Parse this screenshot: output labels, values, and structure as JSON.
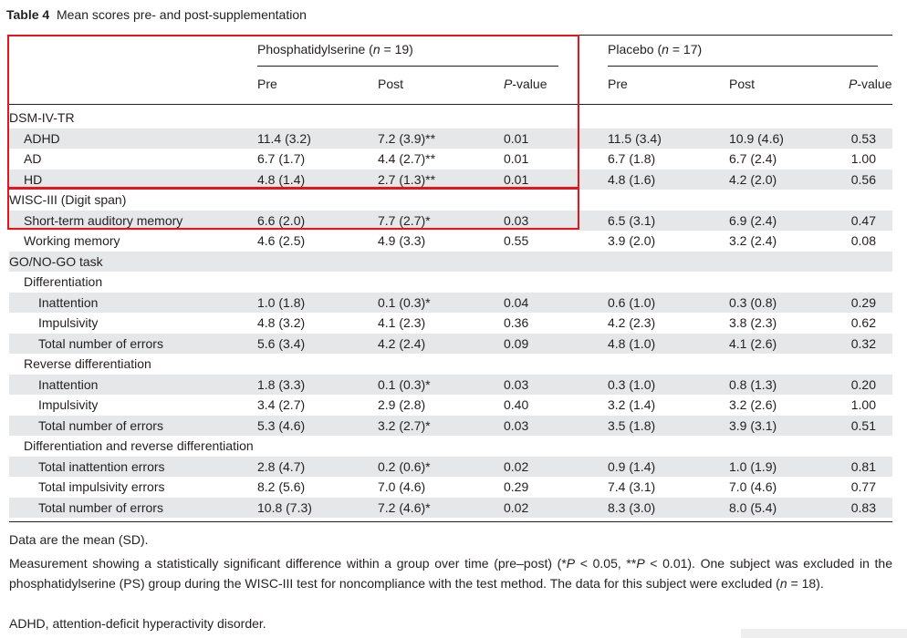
{
  "table": {
    "caption_label": "Table 4",
    "caption_text": "Mean scores pre- and post-supplementation",
    "group1_name": "Phosphatidylserine",
    "group1_n_var": "n",
    "group1_n_rest": " = 19)",
    "group2_name": "Placebo",
    "group2_n_var": "n",
    "group2_n_rest": " = 17)",
    "col_pre": "Pre",
    "col_post": "Post",
    "col_p_italic": "P",
    "col_p_rest": "-value",
    "rows": [
      {
        "label": "DSM-IV-TR",
        "level": 0,
        "section": true
      },
      {
        "label": "ADHD",
        "level": 1,
        "values": [
          "11.4 (3.2)",
          "7.2 (3.9)**",
          "0.01",
          "11.5 (3.4)",
          "10.9 (4.6)",
          "0.53"
        ]
      },
      {
        "label": "AD",
        "level": 1,
        "values": [
          "6.7 (1.7)",
          "4.4 (2.7)**",
          "0.01",
          "6.7 (1.8)",
          "6.7 (2.4)",
          "1.00"
        ]
      },
      {
        "label": "HD",
        "level": 1,
        "values": [
          "4.8 (1.4)",
          "2.7 (1.3)**",
          "0.01",
          "4.8 (1.6)",
          "4.2 (2.0)",
          "0.56"
        ]
      },
      {
        "label": "WISC-III (Digit span)",
        "level": 0,
        "section": true
      },
      {
        "label": "Short-term auditory memory",
        "level": 1,
        "values": [
          "6.6 (2.0)",
          "7.7 (2.7)*",
          "0.03",
          "6.5 (3.1)",
          "6.9 (2.4)",
          "0.47"
        ]
      },
      {
        "label": "Working memory",
        "level": 1,
        "values": [
          "4.6 (2.5)",
          "4.9 (3.3)",
          "0.55",
          "3.9 (2.0)",
          "3.2 (2.4)",
          "0.08"
        ]
      },
      {
        "label": "GO/NO-GO task",
        "level": 0,
        "section": true
      },
      {
        "label": "Differentiation",
        "level": 1,
        "section": true
      },
      {
        "label": "Inattention",
        "level": 2,
        "values": [
          "1.0 (1.8)",
          "0.1 (0.3)*",
          "0.04",
          "0.6 (1.0)",
          "0.3 (0.8)",
          "0.29"
        ]
      },
      {
        "label": "Impulsivity",
        "level": 2,
        "values": [
          "4.8 (3.2)",
          "4.1 (2.3)",
          "0.36",
          "4.2 (2.3)",
          "3.8 (2.3)",
          "0.62"
        ]
      },
      {
        "label": "Total number of errors",
        "level": 2,
        "values": [
          "5.6 (3.4)",
          "4.2 (2.4)",
          "0.09",
          "4.8 (1.0)",
          "4.1 (2.6)",
          "0.32"
        ]
      },
      {
        "label": "Reverse differentiation",
        "level": 1,
        "section": true
      },
      {
        "label": "Inattention",
        "level": 2,
        "values": [
          "1.8 (3.3)",
          "0.1 (0.3)*",
          "0.03",
          "0.3 (1.0)",
          "0.8 (1.3)",
          "0.20"
        ]
      },
      {
        "label": "Impulsivity",
        "level": 2,
        "values": [
          "3.4 (2.7)",
          "2.9 (2.8)",
          "0.40",
          "3.2 (1.4)",
          "3.2 (2.6)",
          "1.00"
        ]
      },
      {
        "label": "Total number of errors",
        "level": 2,
        "values": [
          "5.3 (4.6)",
          "3.2 (2.7)*",
          "0.03",
          "3.5 (1.8)",
          "3.9 (3.1)",
          "0.51"
        ]
      },
      {
        "label": "Differentiation and reverse differentiation",
        "level": 1,
        "section": true
      },
      {
        "label": "Total inattention errors",
        "level": 2,
        "values": [
          "2.8 (4.7)",
          "0.2 (0.6)*",
          "0.02",
          "0.9 (1.4)",
          "1.0 (1.9)",
          "0.81"
        ]
      },
      {
        "label": "Total impulsivity errors",
        "level": 2,
        "values": [
          "8.2 (5.6)",
          "7.0 (4.6)",
          "0.29",
          "7.4 (3.1)",
          "7.0 (4.6)",
          "0.77"
        ]
      },
      {
        "label": "Total number of errors",
        "level": 2,
        "values": [
          "10.8 (7.3)",
          "7.2 (4.6)*",
          "0.02",
          "8.3 (3.0)",
          "8.0 (5.4)",
          "0.83"
        ]
      }
    ],
    "footnotes": {
      "line1": "Data are the mean (SD).",
      "para_a": "Measurement showing a statistically significant difference within a group over time (pre–post) (*",
      "para_p1": "P",
      "para_b": " < 0.05, **",
      "para_p2": "P",
      "para_c": " < 0.01). One subject was excluded in the phosphatidylserine (PS) group during the WISC-III test for noncompliance with the test method. The data for this subject were excluded (",
      "para_n": "n",
      "para_d": " = 18).",
      "line_last": "ADHD, attention-deficit hyperactivity disorder."
    },
    "highlight_color": "#e8141b",
    "shade_color": "#e6e7e8"
  }
}
